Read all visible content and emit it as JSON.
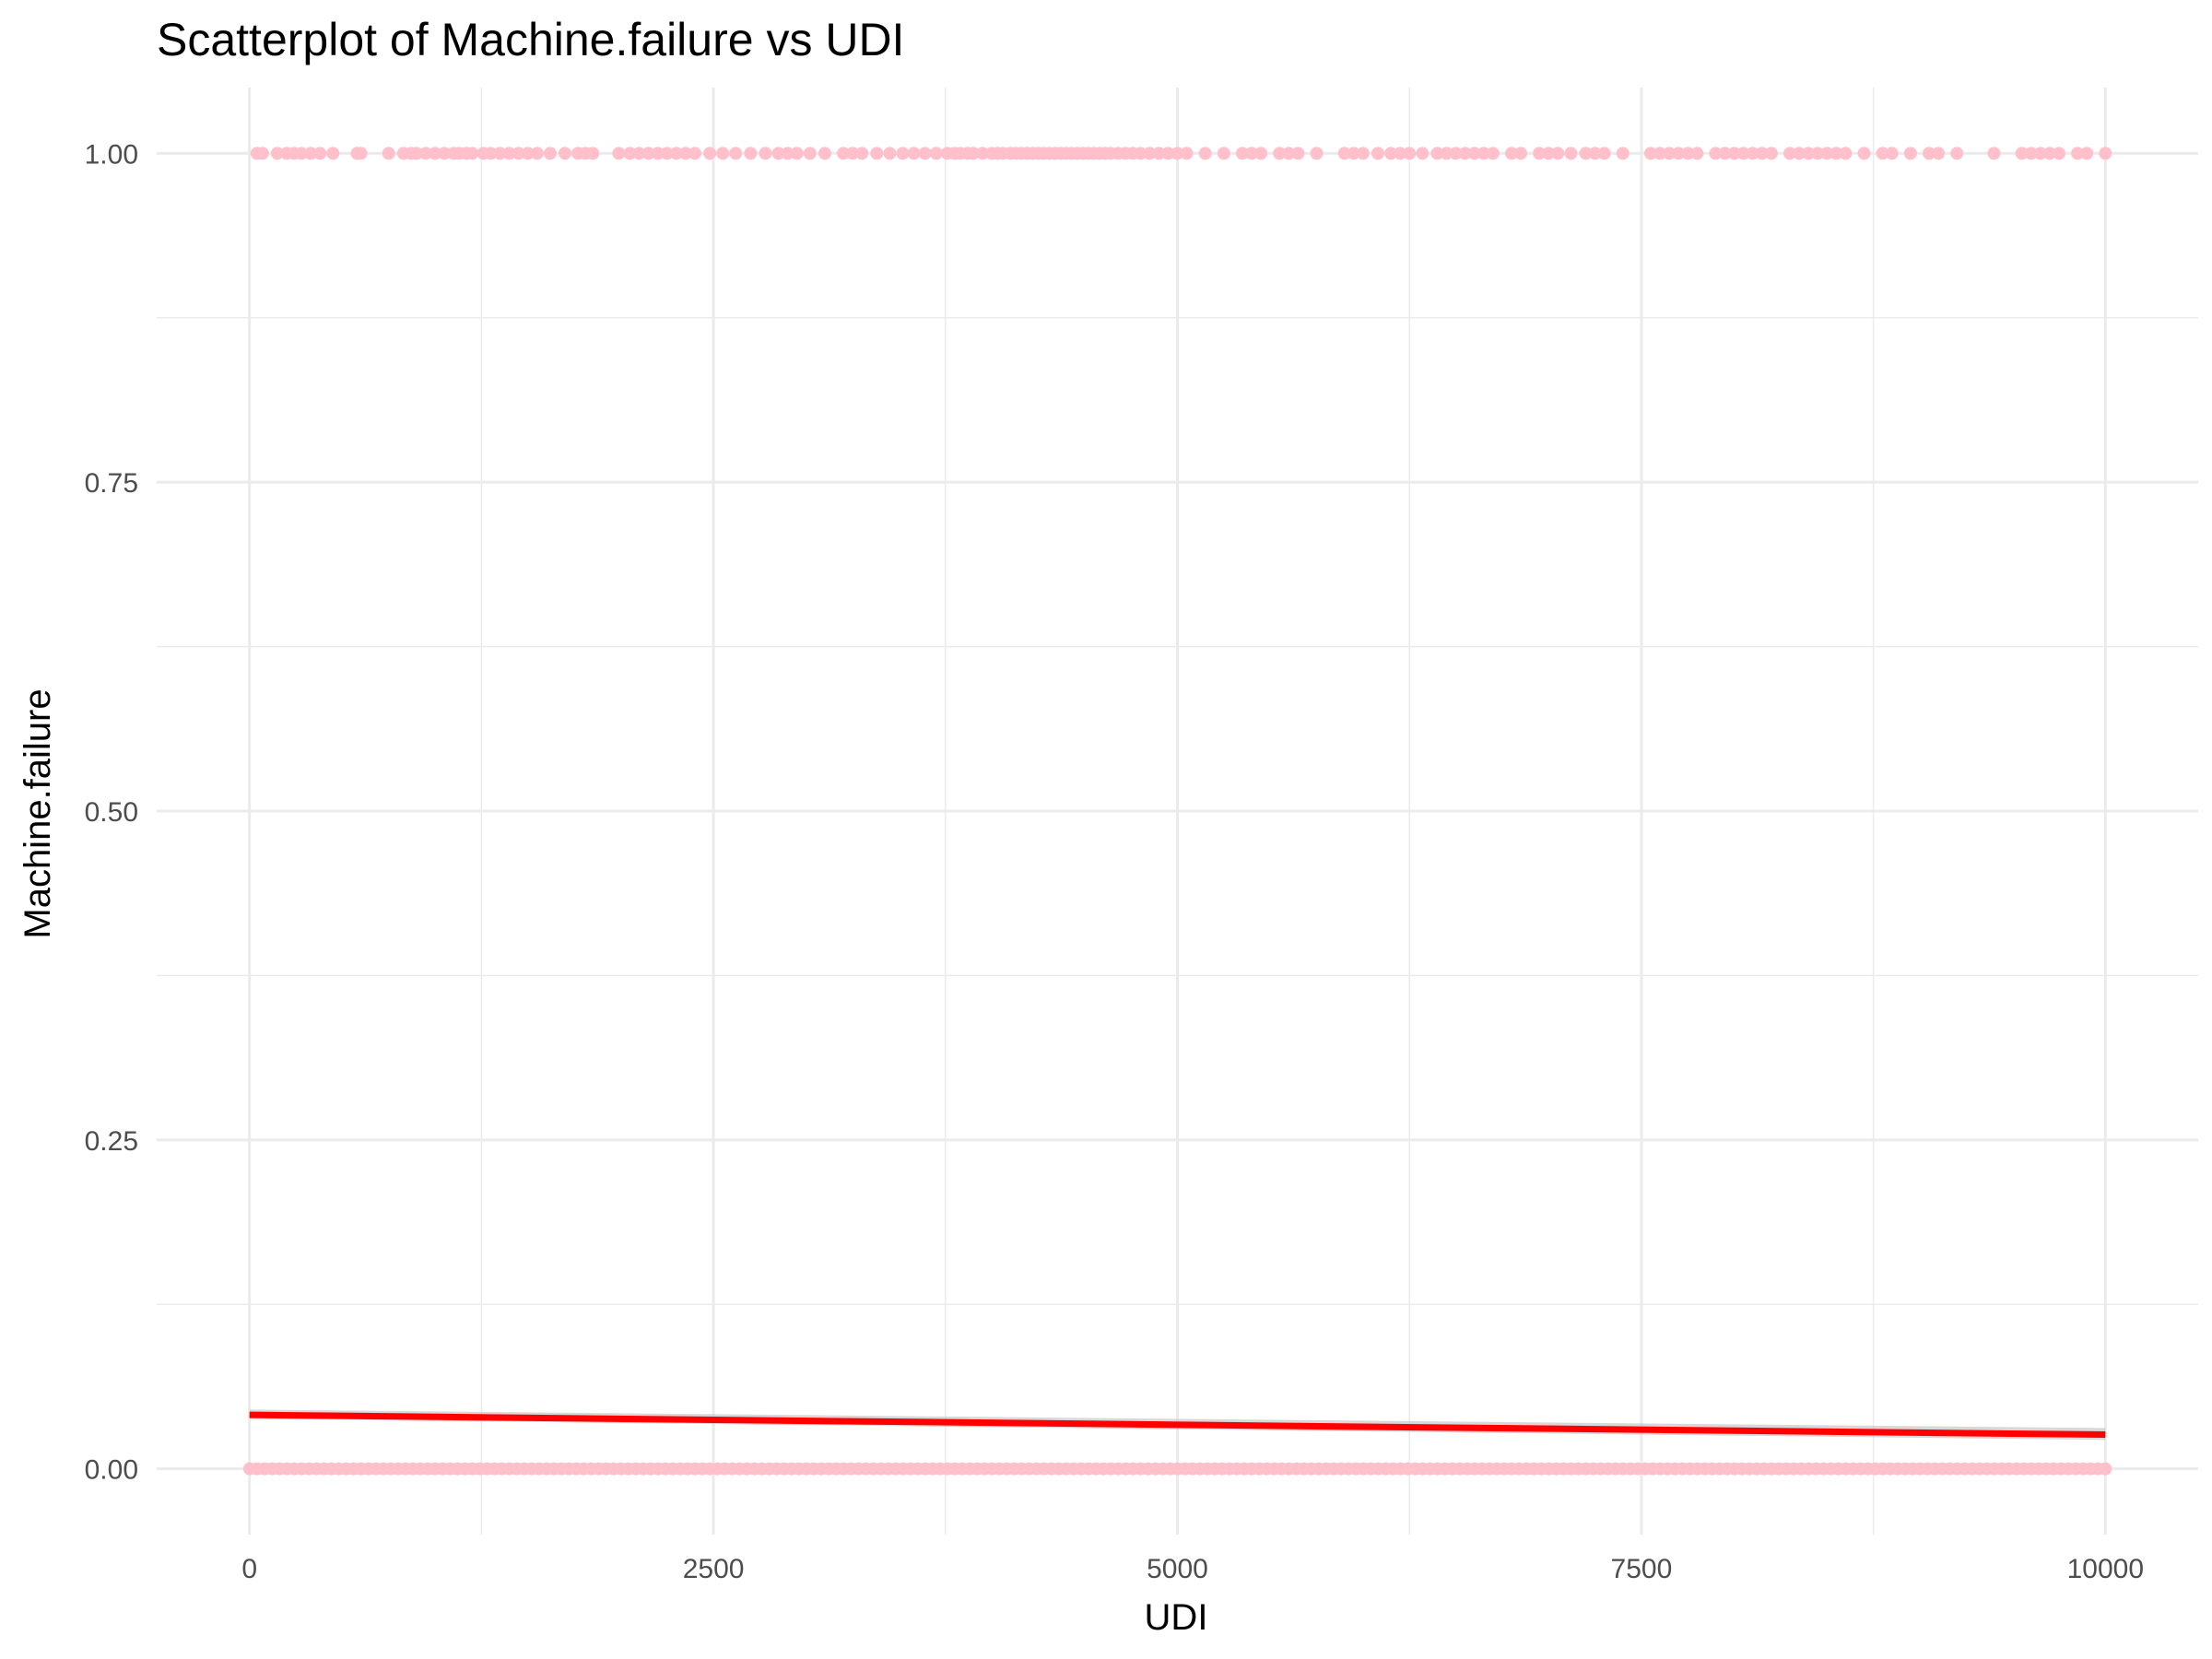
{
  "chart_data": {
    "type": "scatter",
    "title": "Scatterplot of Machine.failure vs UDI",
    "xlabel": "UDI",
    "ylabel": "Machine.failure",
    "xlim": [
      -500,
      10500
    ],
    "ylim": [
      -0.05,
      1.05
    ],
    "x_ticks": [
      0,
      2500,
      5000,
      7500,
      10000
    ],
    "x_tick_labels": [
      "0",
      "2500",
      "5000",
      "7500",
      "10000"
    ],
    "y_ticks": [
      0,
      0.25,
      0.5,
      0.75,
      1.0
    ],
    "y_tick_labels": [
      "0.00",
      "0.25",
      "0.50",
      "0.75",
      "1.00"
    ],
    "grid": true,
    "legend": "none",
    "colors": {
      "points": "#ffc0cb",
      "fit_line": "#ff0000",
      "confidence_band": "#bebebe",
      "grid": "#ebebeb"
    },
    "series": [
      {
        "kind": "points",
        "y": 1,
        "x": [
          40,
          70,
          150,
          200,
          240,
          280,
          330,
          380,
          450,
          580,
          600,
          750,
          830,
          870,
          900,
          950,
          1000,
          1050,
          1100,
          1130,
          1170,
          1200,
          1260,
          1300,
          1350,
          1400,
          1450,
          1500,
          1550,
          1620,
          1700,
          1770,
          1810,
          1850,
          1990,
          2050,
          2100,
          2150,
          2200,
          2250,
          2300,
          2350,
          2400,
          2480,
          2550,
          2620,
          2700,
          2780,
          2850,
          2900,
          2950,
          3020,
          3100,
          3200,
          3250,
          3300,
          3380,
          3450,
          3520,
          3580,
          3640,
          3700,
          3760,
          3800,
          3830,
          3870,
          3900,
          3950,
          4000,
          4030,
          4060,
          4100,
          4130,
          4160,
          4190,
          4220,
          4250,
          4280,
          4310,
          4340,
          4370,
          4400,
          4430,
          4460,
          4490,
          4520,
          4550,
          4580,
          4610,
          4640,
          4680,
          4720,
          4760,
          4800,
          4850,
          4900,
          4950,
          5000,
          5050,
          5150,
          5250,
          5350,
          5400,
          5450,
          5550,
          5600,
          5650,
          5750,
          5900,
          5950,
          6000,
          6080,
          6150,
          6200,
          6250,
          6320,
          6400,
          6450,
          6500,
          6550,
          6600,
          6650,
          6700,
          6800,
          6850,
          6950,
          7000,
          7050,
          7120,
          7200,
          7250,
          7300,
          7400,
          7550,
          7600,
          7650,
          7700,
          7750,
          7800,
          7900,
          7950,
          8000,
          8050,
          8100,
          8150,
          8200,
          8300,
          8350,
          8400,
          8450,
          8500,
          8550,
          8600,
          8700,
          8800,
          8850,
          8950,
          9050,
          9100,
          9200,
          9400,
          9550,
          9600,
          9650,
          9700,
          9750,
          9850,
          9900,
          10000
        ]
      },
      {
        "kind": "points",
        "y": 0,
        "x_range": [
          1,
          10000
        ],
        "note": "dense points covering the full range"
      },
      {
        "kind": "linear-fit",
        "x": [
          0,
          10000
        ],
        "y": [
          0.041,
          0.026
        ],
        "band_lower": [
          0.038,
          0.022
        ],
        "band_upper": [
          0.045,
          0.031
        ]
      }
    ]
  }
}
